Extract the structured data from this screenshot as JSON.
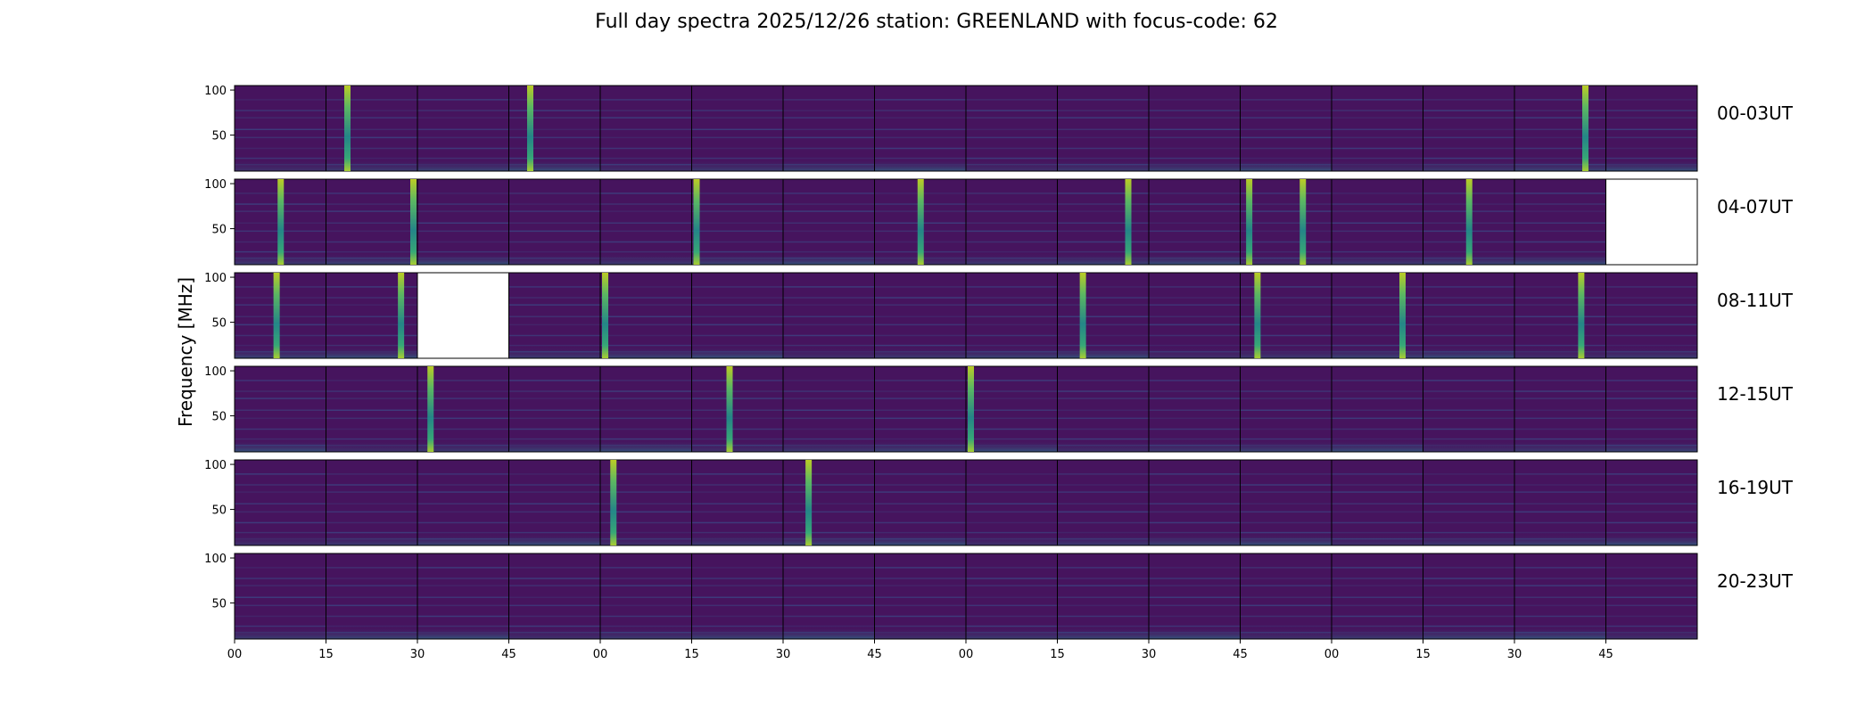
{
  "chart_data": {
    "type": "heatmap",
    "title": "Full day spectra 2025/12/26 station: GREENLAND with focus-code: 62",
    "ylabel": "Frequency [MHz]",
    "xlabel": "",
    "colormap": "viridis",
    "y_ticks": [
      "100",
      "50"
    ],
    "y_tick_values": [
      100,
      50
    ],
    "ylim": [
      10,
      105
    ],
    "x_ticks": [
      "00",
      "15",
      "30",
      "45",
      "00",
      "15",
      "30",
      "45",
      "00",
      "15",
      "30",
      "45",
      "00",
      "15",
      "30",
      "45"
    ],
    "rows": [
      {
        "label": "00-03UT",
        "bursts": [
          [
            1,
            0.2
          ],
          [
            3,
            0.2
          ],
          [
            14,
            0.8
          ]
        ],
        "missing": []
      },
      {
        "label": "04-07UT",
        "bursts": [
          [
            0,
            0.5
          ],
          [
            1,
            1.0
          ],
          [
            5,
            0.0
          ],
          [
            7,
            0.5
          ],
          [
            9,
            0.8
          ],
          [
            11,
            0.7
          ],
          [
            11,
            0.05
          ],
          [
            13,
            0.5
          ]
        ],
        "missing": [
          15
        ]
      },
      {
        "label": "08-11UT",
        "bursts": [
          [
            0,
            0.45
          ],
          [
            1,
            0.85
          ],
          [
            4,
            0.0
          ],
          [
            9,
            0.25
          ],
          [
            11,
            0.15
          ],
          [
            12,
            0.8
          ],
          [
            14,
            0.75
          ]
        ],
        "missing": [
          2
        ]
      },
      {
        "label": "12-15UT",
        "bursts": [
          [
            2,
            0.1
          ],
          [
            5,
            0.4
          ],
          [
            8,
            0.0
          ]
        ],
        "missing": []
      },
      {
        "label": "16-19UT",
        "bursts": [
          [
            4,
            0.1
          ],
          [
            6,
            0.25
          ]
        ],
        "missing": []
      },
      {
        "label": "20-23UT",
        "bursts": [],
        "missing": []
      }
    ]
  },
  "colors": {
    "base": "#46145e",
    "band": "#3b4f8a",
    "burst_top": "#b5de2b",
    "burst_mid": "#21918c",
    "missing": "#ffffff"
  }
}
